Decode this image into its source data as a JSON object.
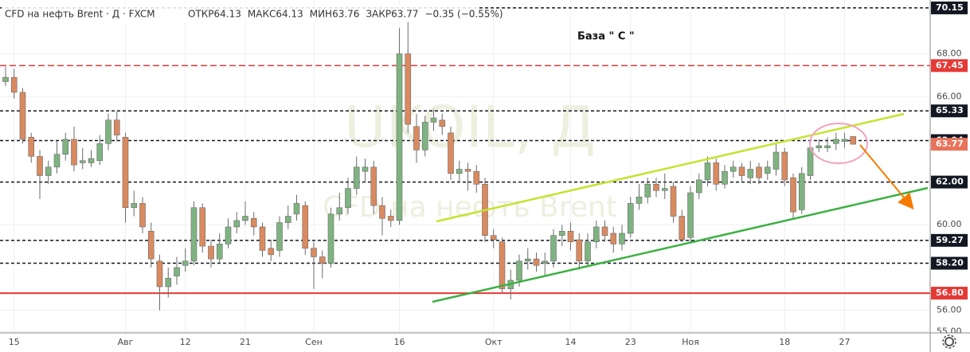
{
  "chart_data": {
    "type": "candlestick",
    "title": "CFD на нефть Brent · Д · FXCM",
    "ohlc_header": [
      {
        "label": "ОТКР",
        "value": "64.13"
      },
      {
        "label": "МАКС",
        "value": "64.13"
      },
      {
        "label": "МИН",
        "value": "63.76"
      },
      {
        "label": "ЗАКР",
        "value": "63.77"
      }
    ],
    "change": "−0.35 (−0.55%)",
    "annotation": "База  \" С \"",
    "watermark": [
      "UKOIL, Д",
      "CFD на нефть Brent"
    ],
    "up_color": "#7fb381",
    "down_color": "#d98a5f",
    "ylim": [
      54.94,
      70.52
    ],
    "yticks": [
      {
        "value": 55,
        "label": "55.00"
      },
      {
        "value": 56,
        "label": "56.00"
      },
      {
        "value": 60,
        "label": "60.00"
      },
      {
        "value": 66,
        "label": "66.00"
      },
      {
        "value": 68,
        "label": "68.00"
      }
    ],
    "grid": true,
    "levels": [
      {
        "value": 70.15,
        "label": "70.15",
        "color": "#131722",
        "style": "dashed"
      },
      {
        "value": 67.45,
        "label": "67.45",
        "color": "#e53935",
        "style": "dashed"
      },
      {
        "value": 65.33,
        "label": "65.33",
        "color": "#131722",
        "style": "dashed"
      },
      {
        "value": 63.94,
        "label": "63.94",
        "color": "#131722",
        "style": "dashed"
      },
      {
        "value": 63.77,
        "label": "63.77",
        "color": "#e8735a",
        "style": "none"
      },
      {
        "value": 62,
        "label": "62.00",
        "color": "#131722",
        "style": "dashed"
      },
      {
        "value": 59.27,
        "label": "59.27",
        "color": "#131722",
        "style": "dashed"
      },
      {
        "value": 58.2,
        "label": "58.20",
        "color": "#131722",
        "style": "dashed"
      },
      {
        "value": 56.8,
        "label": "56.80",
        "color": "#e53935",
        "style": "solid"
      }
    ],
    "categories": [
      null,
      "15",
      null,
      null,
      null,
      null,
      null,
      null,
      null,
      null,
      null,
      null,
      null,
      null,
      "Авг",
      null,
      null,
      null,
      null,
      null,
      null,
      "12",
      null,
      null,
      null,
      null,
      null,
      null,
      "21",
      null,
      null,
      null,
      null,
      null,
      null,
      null,
      "Сен",
      null,
      null,
      null,
      null,
      null,
      null,
      null,
      null,
      null,
      "16",
      null,
      null,
      null,
      null,
      null,
      null,
      null,
      null,
      null,
      null,
      "Окт",
      null,
      null,
      null,
      null,
      null,
      null,
      null,
      null,
      "14",
      null,
      null,
      null,
      null,
      null,
      null,
      "23",
      null,
      null,
      null,
      null,
      null,
      null,
      "Ноя",
      null,
      null,
      null,
      null,
      null,
      null,
      null,
      null,
      null,
      null,
      "18",
      null,
      null,
      null,
      null,
      null,
      null,
      "27",
      null
    ],
    "open": [
      66.7,
      66.9,
      66.2,
      64.1,
      63.2,
      62.3,
      62.7,
      63.3,
      64.0,
      62.9,
      62.9,
      63.0,
      63.8,
      64.9,
      64.1,
      60.8,
      61.0,
      59.7,
      58.3,
      57.1,
      57.6,
      58.1,
      58.3,
      60.8,
      59.0,
      58.4,
      59.1,
      59.9,
      60.2,
      60.3,
      59.9,
      58.9,
      58.8,
      60.1,
      60.5,
      60.9,
      58.9,
      58.5,
      58.2,
      60.5,
      60.8,
      61.7,
      62.5,
      62.7,
      60.9,
      60.4,
      60.2,
      68.0,
      64.6,
      63.5,
      64.8,
      64.9,
      64.3,
      62.4,
      62.6,
      62.5,
      61.9,
      59.5,
      59.2,
      57.0,
      57.4,
      58.3,
      58.4,
      58.2,
      58.3,
      59.5,
      59.7,
      59.3,
      58.3,
      59.2,
      59.9,
      59.6,
      59.1,
      59.6,
      61.0,
      61.3,
      61.9,
      61.6,
      61.8,
      60.4,
      59.4,
      61.5,
      62.1,
      62.9,
      61.9,
      62.5,
      62.7,
      62.2,
      62.7,
      62.4,
      62.6,
      63.4,
      62.2,
      60.7,
      62.3,
      63.6,
      63.6,
      63.8,
      63.9,
      64.13
    ],
    "high": [
      67.4,
      67.3,
      66.4,
      64.3,
      63.5,
      63.0,
      63.9,
      64.3,
      64.6,
      63.6,
      63.5,
      64.2,
      65.2,
      65.3,
      64.3,
      61.6,
      61.3,
      60.1,
      58.6,
      58.0,
      58.5,
      58.9,
      61.1,
      61.0,
      59.3,
      59.6,
      60.3,
      60.6,
      61.1,
      60.6,
      60.1,
      59.3,
      60.4,
      60.9,
      61.4,
      61.1,
      59.2,
      58.8,
      60.8,
      61.5,
      62.2,
      63.2,
      63.1,
      63.0,
      61.3,
      60.7,
      69.2,
      69.6,
      65.2,
      65.1,
      65.4,
      65.2,
      64.6,
      63.0,
      62.9,
      62.8,
      62.2,
      59.8,
      59.4,
      57.9,
      58.6,
      58.9,
      58.7,
      58.7,
      59.8,
      60.0,
      60.1,
      59.6,
      59.6,
      60.2,
      60.2,
      59.9,
      60.0,
      61.3,
      61.9,
      62.2,
      62.2,
      62.4,
      62.0,
      60.7,
      61.8,
      62.4,
      63.2,
      63.1,
      62.8,
      63.0,
      62.9,
      63.0,
      62.9,
      63.0,
      63.8,
      63.6,
      62.4,
      62.7,
      63.9,
      64.0,
      64.1,
      64.3,
      64.3,
      64.13
    ],
    "low": [
      66.5,
      65.9,
      63.8,
      62.9,
      61.2,
      61.9,
      62.4,
      63.0,
      62.5,
      62.6,
      62.7,
      62.8,
      63.5,
      63.9,
      60.1,
      60.4,
      59.6,
      58.0,
      56.0,
      56.6,
      57.2,
      57.8,
      58.1,
      58.7,
      58.0,
      58.2,
      58.9,
      59.6,
      60.0,
      59.5,
      58.5,
      58.3,
      58.5,
      59.8,
      60.2,
      58.6,
      57.0,
      57.5,
      58.0,
      60.2,
      60.5,
      61.4,
      62.0,
      60.5,
      59.5,
      59.9,
      60.0,
      64.3,
      62.9,
      63.2,
      64.4,
      64.2,
      62.1,
      62.0,
      61.6,
      61.5,
      59.2,
      58.9,
      56.8,
      56.5,
      57.1,
      57.9,
      57.8,
      57.6,
      58.0,
      59.0,
      58.8,
      57.9,
      58.1,
      58.9,
      59.2,
      58.7,
      58.8,
      59.4,
      60.7,
      61.0,
      61.3,
      61.2,
      60.1,
      59.2,
      59.2,
      61.2,
      61.8,
      61.6,
      61.7,
      62.2,
      62.0,
      61.9,
      61.9,
      62.1,
      62.3,
      61.8,
      60.3,
      60.5,
      62.1,
      63.4,
      63.4,
      63.5,
      63.6,
      63.76
    ],
    "close": [
      66.9,
      66.2,
      64.0,
      63.2,
      62.3,
      62.7,
      63.3,
      64.0,
      62.8,
      63.0,
      63.1,
      63.8,
      64.9,
      64.2,
      60.8,
      61.0,
      59.9,
      58.4,
      57.1,
      57.5,
      58.0,
      58.3,
      60.8,
      59.0,
      58.4,
      59.1,
      59.9,
      60.2,
      60.4,
      59.9,
      58.8,
      58.6,
      60.1,
      60.4,
      61.0,
      58.9,
      58.5,
      58.2,
      60.5,
      60.8,
      61.7,
      62.7,
      62.7,
      60.9,
      60.3,
      60.2,
      68.0,
      64.7,
      63.5,
      64.8,
      65.0,
      64.6,
      62.4,
      62.6,
      62.5,
      61.9,
      59.5,
      59.3,
      57.0,
      57.4,
      58.3,
      58.4,
      58.1,
      58.3,
      59.5,
      59.7,
      59.2,
      58.3,
      59.2,
      59.9,
      59.5,
      59.1,
      59.6,
      61.0,
      61.3,
      61.9,
      61.6,
      61.7,
      60.4,
      59.3,
      61.5,
      62.1,
      62.9,
      61.9,
      62.5,
      62.7,
      62.3,
      62.6,
      62.2,
      62.7,
      63.4,
      62.1,
      60.6,
      62.4,
      63.6,
      63.7,
      63.7,
      64.0,
      64.0,
      63.77
    ]
  }
}
